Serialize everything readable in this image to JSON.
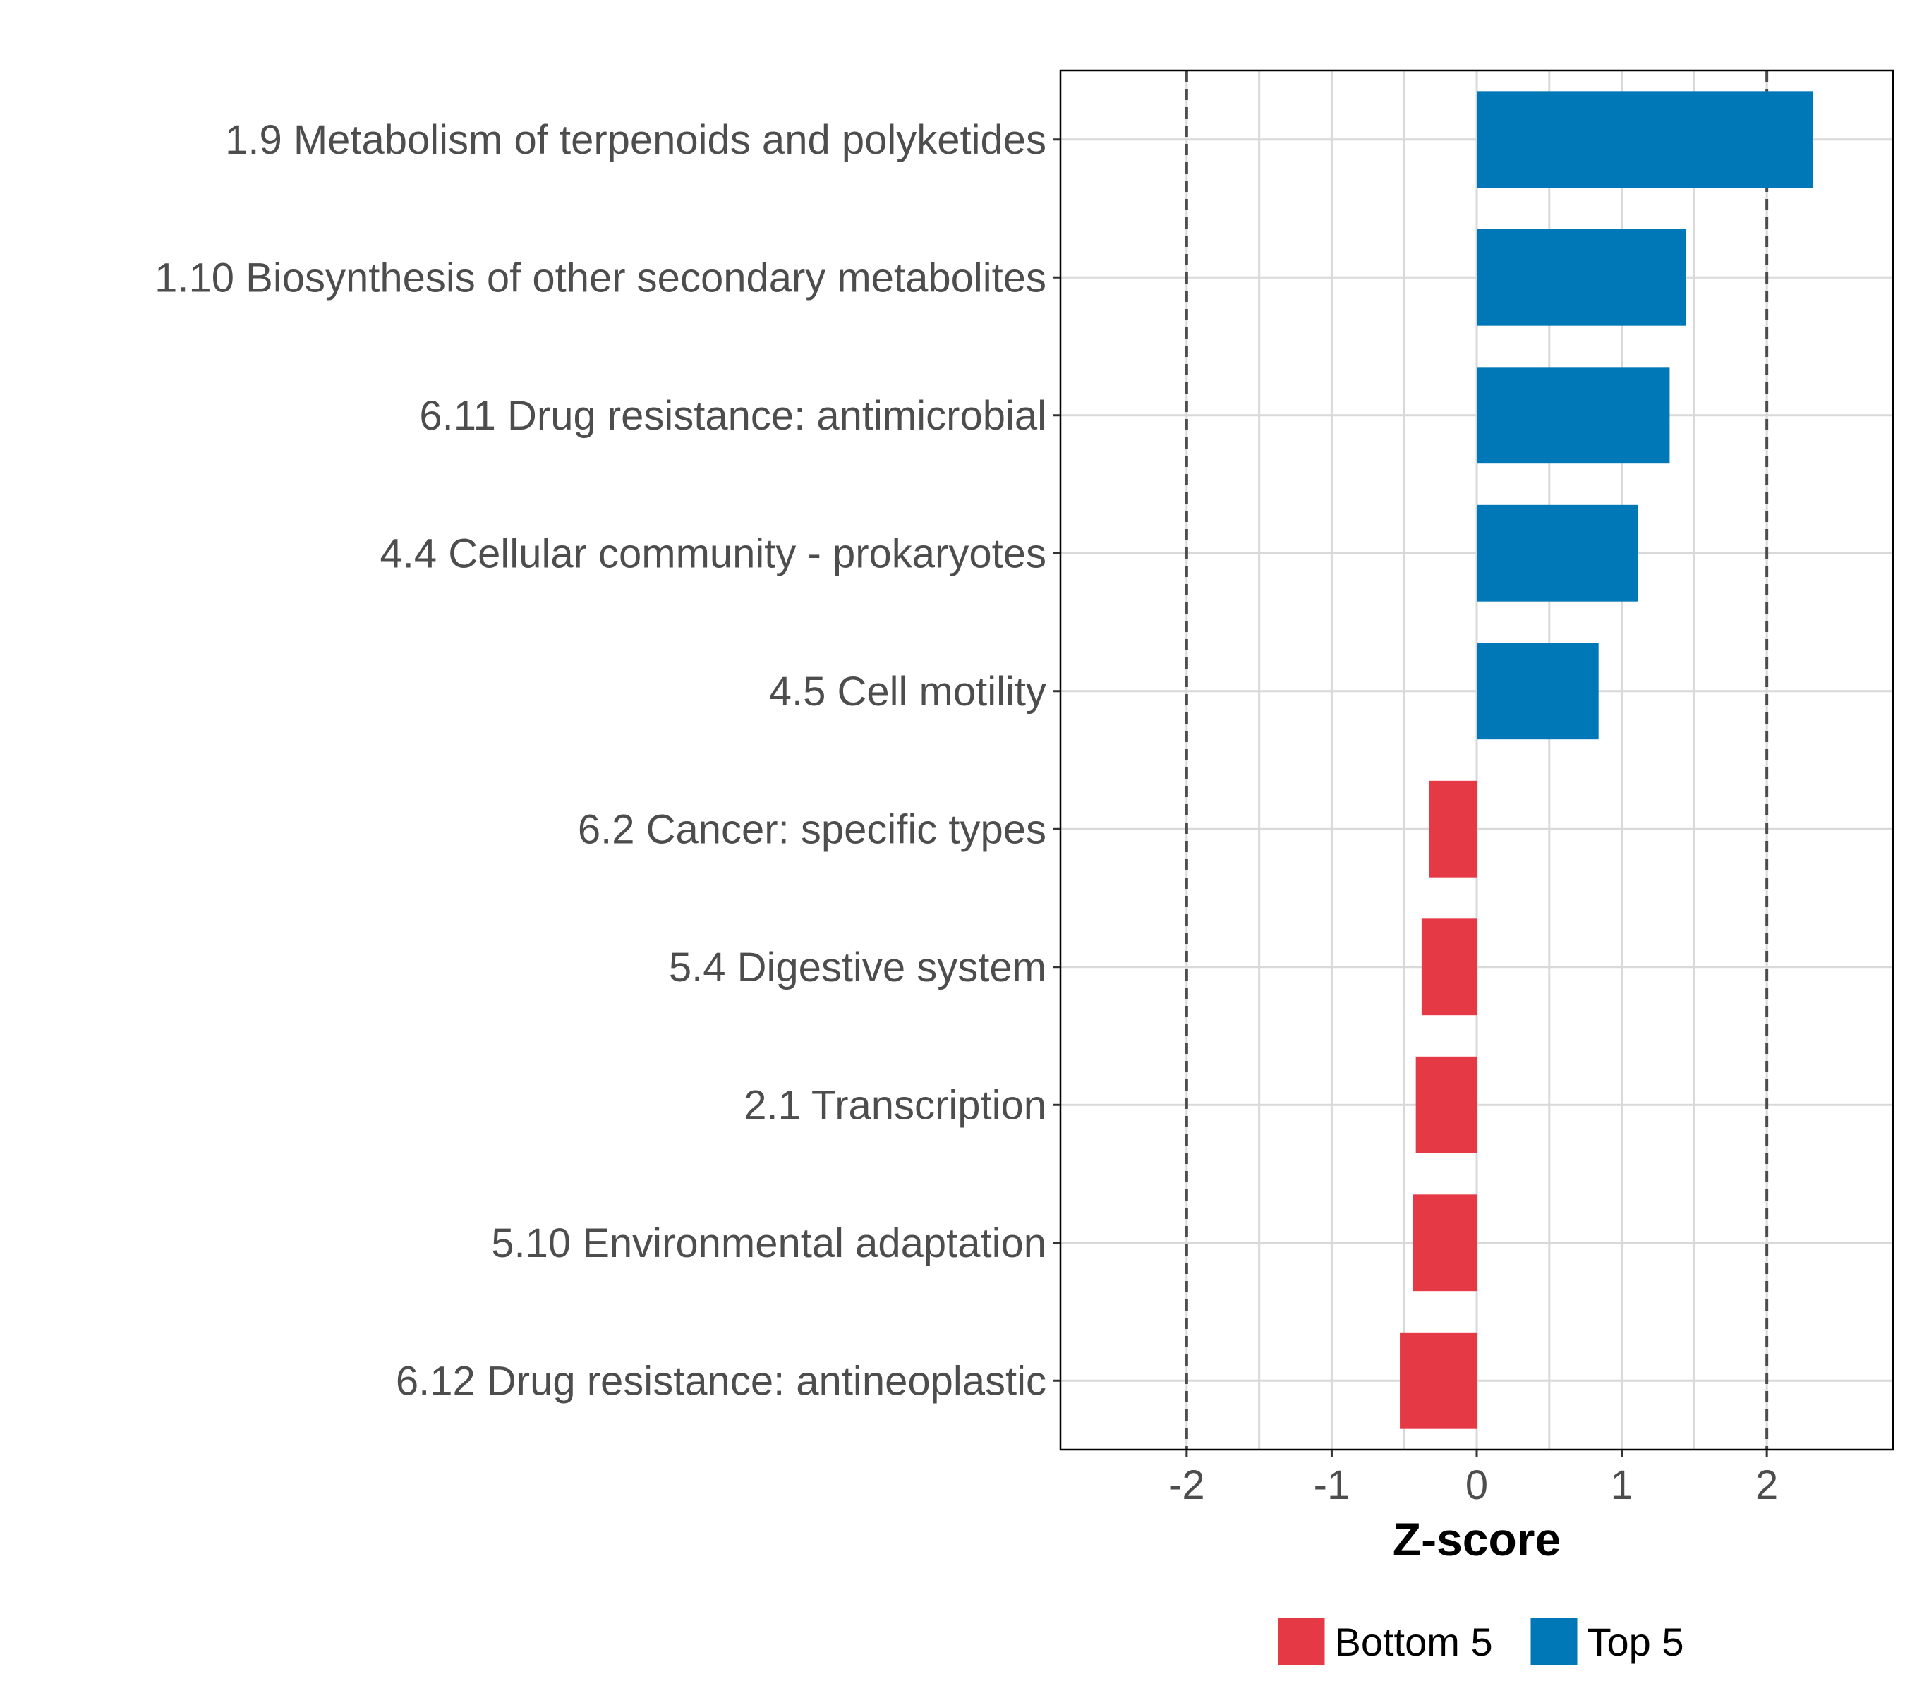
{
  "chart_data": {
    "type": "bar",
    "orientation": "horizontal",
    "title": "",
    "xlabel": "Z-score",
    "ylabel": "",
    "xlim": [
      -2.87,
      2.87
    ],
    "x_ticks": [
      -2,
      -1,
      0,
      1,
      2
    ],
    "x_tick_labels": [
      "-2",
      "-1",
      "0",
      "1",
      "2"
    ],
    "reference_lines": [
      -2,
      2
    ],
    "grid": true,
    "categories": [
      "1.9 Metabolism of terpenoids and polyketides",
      "1.10 Biosynthesis of other secondary metabolites",
      "6.11 Drug resistance: antimicrobial",
      "4.4 Cellular community - prokaryotes",
      "4.5 Cell motility",
      "6.2 Cancer: specific types",
      "5.4 Digestive system",
      "2.1 Transcription",
      "5.10 Environmental adaptation",
      "6.12 Drug resistance: antineoplastic"
    ],
    "values": [
      2.32,
      1.44,
      1.33,
      1.11,
      0.84,
      -0.33,
      -0.38,
      -0.42,
      -0.44,
      -0.53
    ],
    "groups": [
      "Top 5",
      "Top 5",
      "Top 5",
      "Top 5",
      "Top 5",
      "Bottom 5",
      "Bottom 5",
      "Bottom 5",
      "Bottom 5",
      "Bottom 5"
    ],
    "legend": {
      "position": "bottom",
      "entries": [
        {
          "label": "Bottom 5",
          "color": "#e63946"
        },
        {
          "label": "Top 5",
          "color": "#0077b6"
        }
      ]
    }
  },
  "colors": {
    "Top 5": "#0077b6",
    "Bottom 5": "#e63946",
    "grid": "#d9d9d9",
    "refline": "#4d4d4d"
  }
}
